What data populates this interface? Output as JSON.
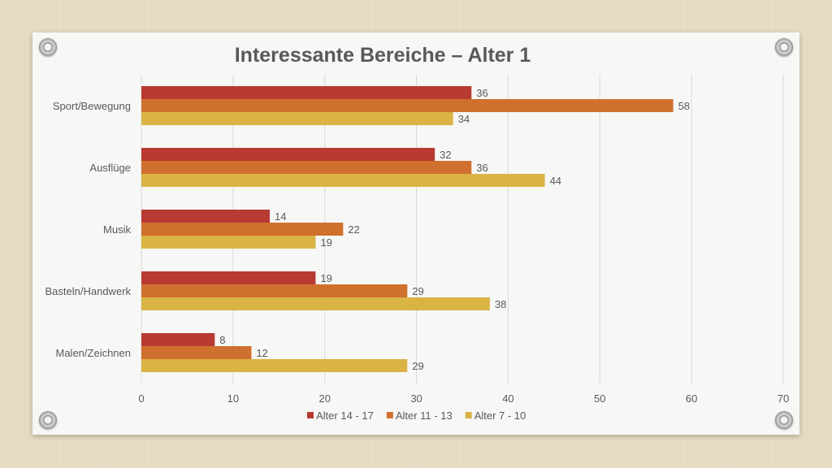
{
  "chart_data": {
    "type": "bar",
    "orientation": "horizontal",
    "title": "Interessante Bereiche – Alter 1",
    "categories": [
      "Sport/Bewegung",
      "Ausflüge",
      "Musik",
      "Basteln/Handwerk",
      "Malen/Zeichnen"
    ],
    "series": [
      {
        "name": "Alter 14 - 17",
        "color": "#b83a32",
        "values": [
          36,
          32,
          14,
          19,
          8
        ]
      },
      {
        "name": "Alter 11 - 13",
        "color": "#d0702e",
        "values": [
          58,
          36,
          22,
          29,
          12
        ]
      },
      {
        "name": "Alter 7 - 10",
        "color": "#d9b444",
        "values": [
          34,
          44,
          19,
          38,
          29
        ]
      }
    ],
    "xlim": [
      0,
      70
    ],
    "xticks": [
      "0",
      "10",
      "20",
      "30",
      "40",
      "50",
      "60",
      "70"
    ],
    "grid": true,
    "legend": "bottom",
    "data_labels": true
  }
}
